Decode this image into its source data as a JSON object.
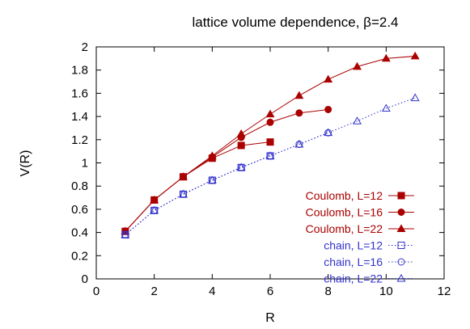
{
  "chart_data": {
    "type": "line",
    "title": "lattice volume dependence, β=2.4",
    "xlabel": "R",
    "ylabel": "V(R)",
    "xlim": [
      0,
      12
    ],
    "ylim": [
      0,
      2
    ],
    "xticks": [
      "0",
      "2",
      "4",
      "6",
      "8",
      "10",
      "12"
    ],
    "yticks": [
      "0",
      "0.2",
      "0.4",
      "0.6",
      "0.8",
      "1",
      "1.2",
      "1.4",
      "1.6",
      "1.8",
      "2"
    ],
    "grid": false,
    "legend_position": "bottom-right",
    "series": [
      {
        "name": "Coulomb, L=12",
        "color": "#aa0000",
        "marker": "square-filled",
        "line": "solid",
        "x": [
          1,
          2,
          3,
          4,
          5,
          6
        ],
        "y": [
          0.41,
          0.68,
          0.88,
          1.04,
          1.15,
          1.18
        ]
      },
      {
        "name": "Coulomb, L=16",
        "color": "#aa0000",
        "marker": "circle-filled",
        "line": "solid",
        "x": [
          1,
          2,
          3,
          4,
          5,
          6,
          7,
          8
        ],
        "y": [
          0.41,
          0.68,
          0.88,
          1.05,
          1.22,
          1.35,
          1.43,
          1.46
        ]
      },
      {
        "name": "Coulomb, L=22",
        "color": "#aa0000",
        "marker": "triangle-filled",
        "line": "solid",
        "x": [
          1,
          2,
          3,
          4,
          5,
          6,
          7,
          8,
          9,
          10,
          11
        ],
        "y": [
          0.41,
          0.68,
          0.88,
          1.06,
          1.25,
          1.42,
          1.58,
          1.72,
          1.83,
          1.9,
          1.92
        ]
      },
      {
        "name": "chain, L=12",
        "color": "#3333cc",
        "marker": "square-open",
        "line": "dotted",
        "x": [
          1,
          2,
          3,
          4,
          5,
          6
        ],
        "y": [
          0.38,
          0.59,
          0.73,
          0.85,
          0.96,
          1.06
        ]
      },
      {
        "name": "chain, L=16",
        "color": "#3333cc",
        "marker": "circle-open",
        "line": "dotted",
        "x": [
          1,
          2,
          3,
          4,
          5,
          6,
          7,
          8
        ],
        "y": [
          0.38,
          0.59,
          0.73,
          0.85,
          0.96,
          1.06,
          1.16,
          1.26
        ]
      },
      {
        "name": "chain, L=22",
        "color": "#3333cc",
        "marker": "triangle-open",
        "line": "dotted",
        "x": [
          1,
          2,
          3,
          4,
          5,
          6,
          7,
          8,
          9,
          10,
          11
        ],
        "y": [
          0.38,
          0.59,
          0.73,
          0.85,
          0.96,
          1.06,
          1.16,
          1.26,
          1.36,
          1.47,
          1.56
        ]
      }
    ]
  }
}
